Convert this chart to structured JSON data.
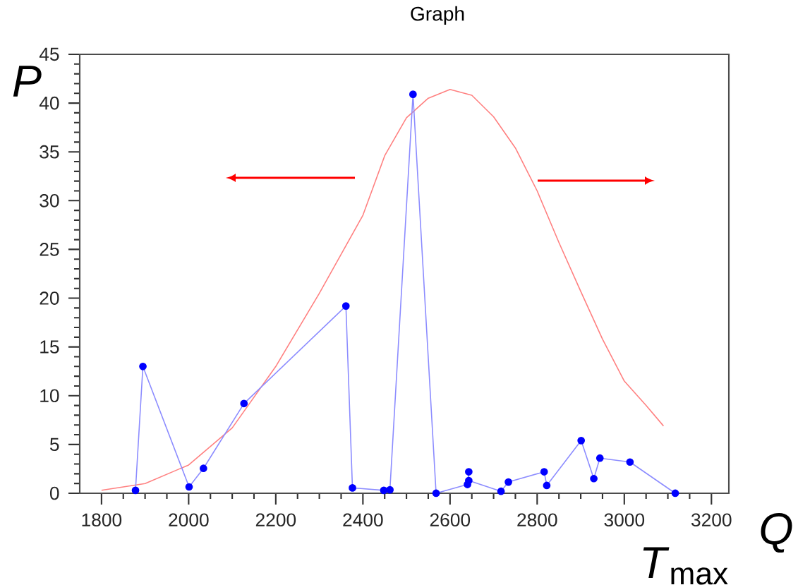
{
  "chart_data": {
    "type": "line",
    "title": "Graph",
    "xlabel": "Q",
    "ylabel": "P",
    "annotations": [
      "*T*$_{max}$"
    ],
    "xlim": [
      1750,
      3240
    ],
    "ylim": [
      0,
      45
    ],
    "xticks": [
      1800,
      2000,
      2200,
      2400,
      2600,
      2800,
      3000,
      3200
    ],
    "yticks": [
      0,
      5,
      10,
      15,
      20,
      25,
      30,
      35,
      40,
      45
    ],
    "series": [
      {
        "marker": "none",
        "color": "#ff8080",
        "x": [
          1800,
          1900,
          2000,
          2100,
          2200,
          2300,
          2350,
          2400,
          2450,
          2500,
          2550,
          2600,
          2650,
          2700,
          2750,
          2800,
          2850,
          2900,
          2950,
          3000,
          3050,
          3090
        ],
        "values": [
          0.3,
          1.0,
          2.9,
          6.7,
          13,
          20.5,
          24.5,
          28.5,
          34.6,
          38.5,
          40.5,
          41.4,
          40.8,
          38.6,
          35.4,
          31.0,
          25.7,
          20.7,
          15.8,
          11.5,
          9.0,
          6.9
        ]
      },
      {
        "marker": "circle",
        "color": "#0000ff",
        "x": [
          1878,
          1895,
          2001,
          2034,
          2127,
          2361,
          2376,
          2448,
          2462,
          2515,
          2568,
          2640,
          2643,
          2643,
          2717,
          2734,
          2816,
          2822,
          2901,
          2930,
          2944,
          3013,
          3117
        ],
        "values": [
          0.3,
          13.0,
          0.65,
          2.55,
          9.2,
          19.2,
          0.55,
          0.3,
          0.35,
          40.9,
          0,
          0.9,
          2.2,
          1.3,
          0.2,
          1.15,
          2.2,
          0.8,
          5.4,
          1.5,
          3.6,
          3.2,
          0
        ]
      }
    ]
  }
}
